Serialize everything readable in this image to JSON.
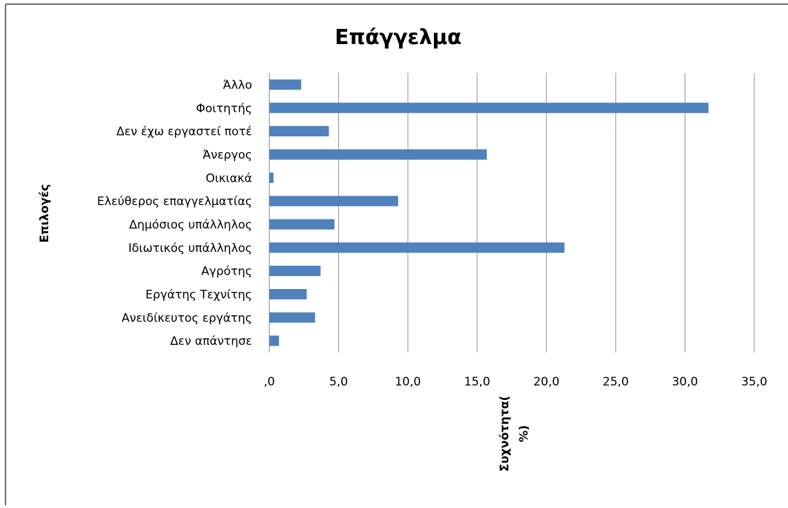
{
  "chart_data": {
    "type": "bar",
    "orientation": "horizontal",
    "title": "Επάγγελμα",
    "xlabel_lines": [
      "Συχνότητα(",
      "%)"
    ],
    "ylabel": "Επιλογές",
    "categories": [
      "Άλλο",
      "Φοιτητής",
      "Δεν έχω εργαστεί ποτέ",
      "Άνεργος",
      "Οικιακά",
      "Ελεύθερος επαγγελματίας",
      "Δημόσιος υπάλληλος",
      "Ιδιωτικός υπάλληλος",
      "Αγρότης",
      "Εργάτης Τεχνίτης",
      "Ανειδίκευτος εργάτης",
      "Δεν απάντησε"
    ],
    "values": [
      2.3,
      31.7,
      4.3,
      15.7,
      0.3,
      9.3,
      4.7,
      21.3,
      3.7,
      2.7,
      3.3,
      0.7
    ],
    "xlim": [
      0,
      35
    ],
    "xticks": [
      0,
      5,
      10,
      15,
      20,
      25,
      30,
      35
    ],
    "xtick_labels": [
      ",0",
      "5,0",
      "10,0",
      "15,0",
      "20,0",
      "25,0",
      "30,0",
      "35,0"
    ],
    "grid": "vertical",
    "bar_color": "#4F81BD",
    "grid_color": "#8c8c8c"
  }
}
